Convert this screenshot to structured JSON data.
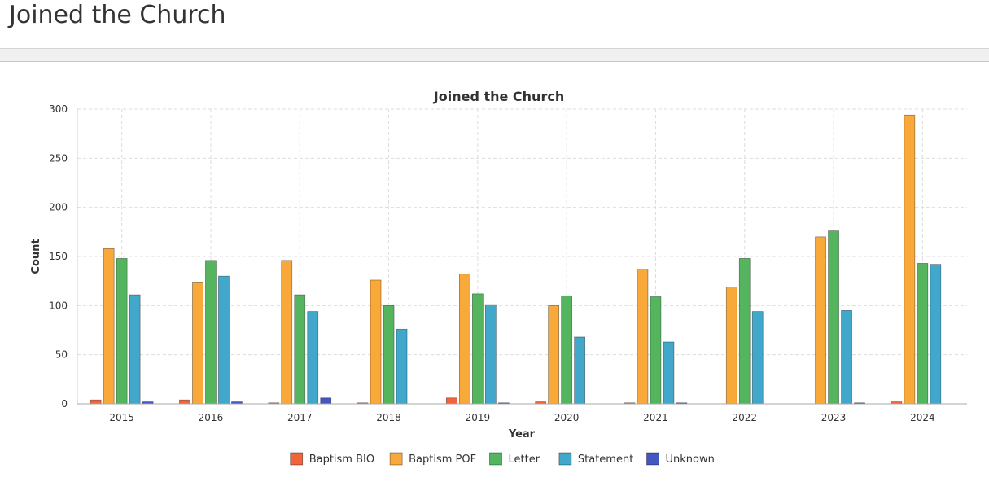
{
  "page": {
    "title": "Joined the Church"
  },
  "chart_data": {
    "type": "bar",
    "title": "Joined the Church",
    "xlabel": "Year",
    "ylabel": "Count",
    "ylim": [
      0,
      300
    ],
    "yticks": [
      0,
      50,
      100,
      150,
      200,
      250,
      300
    ],
    "grid": true,
    "legend_position": "bottom",
    "categories": [
      "2015",
      "2016",
      "2017",
      "2018",
      "2019",
      "2020",
      "2021",
      "2022",
      "2023",
      "2024"
    ],
    "series": [
      {
        "name": "Baptism BIO",
        "color": "#f2643c",
        "values": [
          4,
          4,
          1,
          1,
          6,
          2,
          1,
          0,
          0,
          2
        ]
      },
      {
        "name": "Baptism POF",
        "color": "#f9a93a",
        "values": [
          158,
          124,
          146,
          126,
          132,
          100,
          137,
          119,
          170,
          294
        ]
      },
      {
        "name": "Letter",
        "color": "#55b55e",
        "values": [
          148,
          146,
          111,
          100,
          112,
          110,
          109,
          148,
          176,
          143
        ]
      },
      {
        "name": "Statement",
        "color": "#41a7cb",
        "values": [
          111,
          130,
          94,
          76,
          101,
          68,
          63,
          94,
          95,
          142
        ]
      },
      {
        "name": "Unknown",
        "color": "#4456c2",
        "values": [
          2,
          2,
          6,
          0,
          1,
          0,
          1,
          0,
          1,
          0
        ]
      }
    ]
  }
}
